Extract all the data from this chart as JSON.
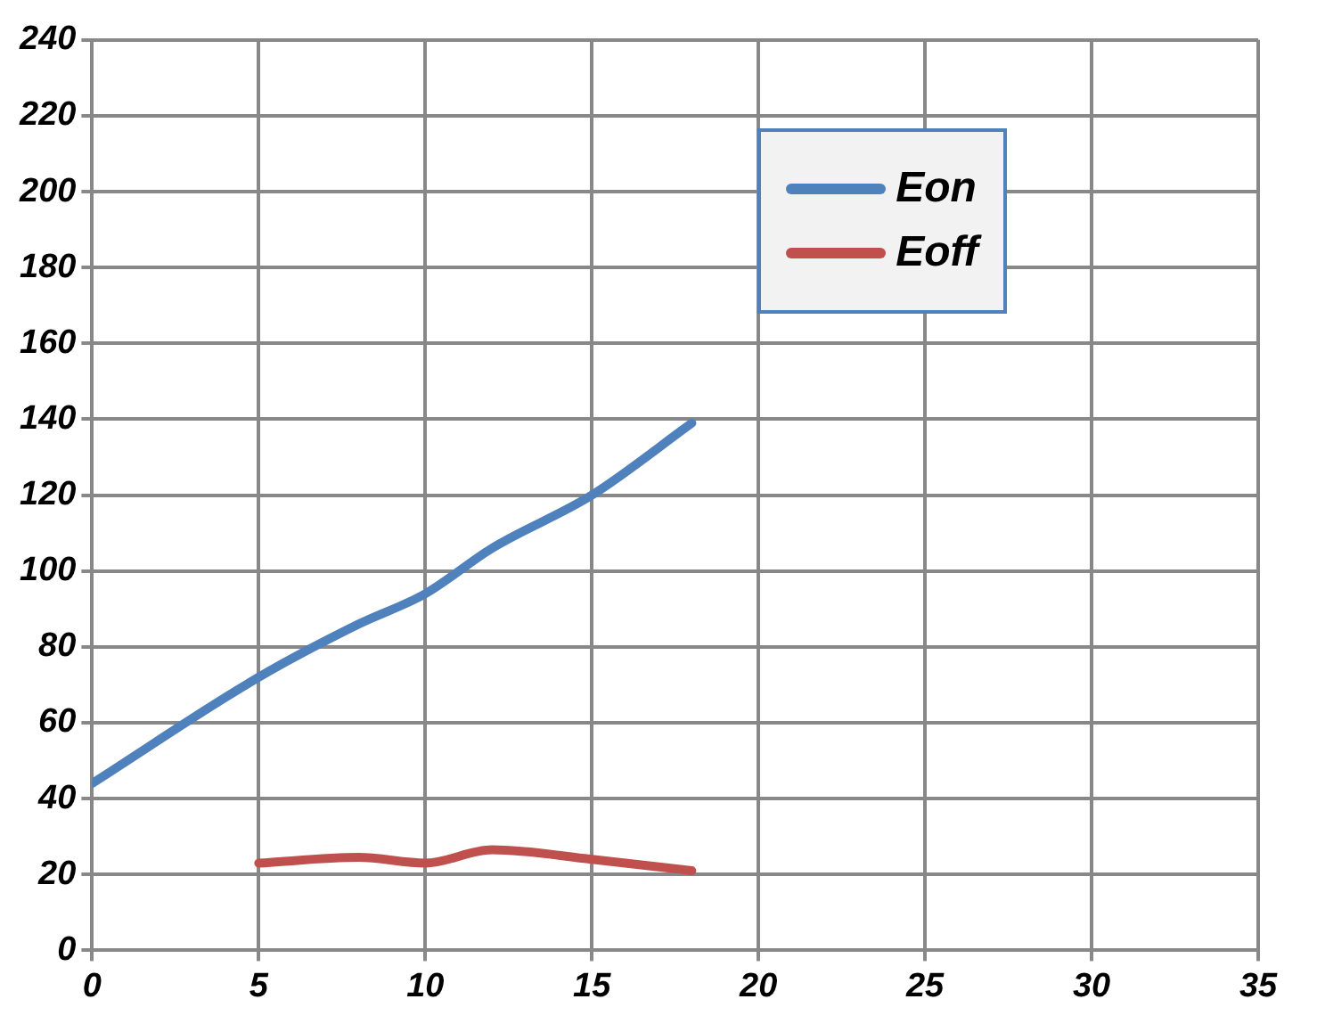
{
  "chart_data": {
    "type": "line",
    "x": [
      0,
      5,
      8,
      10,
      12,
      15,
      18
    ],
    "series": [
      {
        "name": "Eon",
        "color": "#4f81bd",
        "values": [
          44,
          72,
          86,
          94,
          106,
          120,
          139
        ]
      },
      {
        "name": "Eoff",
        "color": "#c0504d",
        "x": [
          5,
          8,
          10,
          12,
          15,
          18
        ],
        "values": [
          23,
          24.5,
          23,
          26.5,
          24,
          21
        ]
      }
    ],
    "xlim": [
      0,
      35
    ],
    "xticks": [
      0,
      5,
      10,
      15,
      20,
      25,
      30,
      35
    ],
    "ylim": [
      0,
      240
    ],
    "yticks": [
      0,
      20,
      40,
      60,
      80,
      100,
      120,
      140,
      160,
      180,
      200,
      220,
      240
    ],
    "grid": true,
    "legend": "top right",
    "marker": "none",
    "line_style": "solid"
  }
}
